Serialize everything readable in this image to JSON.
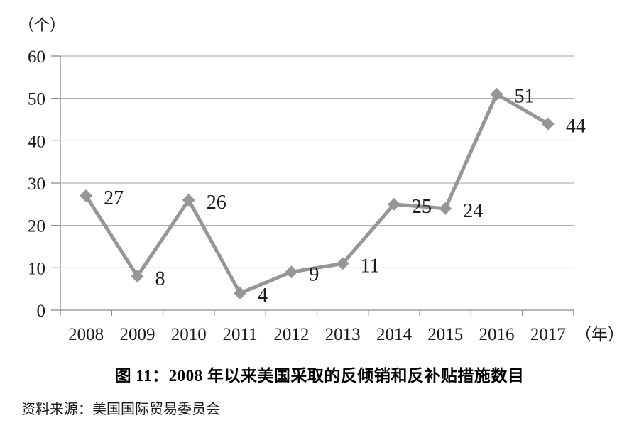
{
  "figure": {
    "title": "图 11：2008 年以来美国采取的反倾销和反补贴措施数目",
    "source": "资料来源：美国国际贸易委员会"
  },
  "chart_data": {
    "type": "line",
    "title": "图 11：2008 年以来美国采取的反倾销和反补贴措施数目",
    "categories": [
      "2008",
      "2009",
      "2010",
      "2011",
      "2012",
      "2013",
      "2014",
      "2015",
      "2016",
      "2017"
    ],
    "values": [
      27,
      8,
      26,
      4,
      9,
      11,
      25,
      24,
      51,
      44
    ],
    "data_labels": [
      "27",
      "8",
      "26",
      "4",
      "9",
      "11",
      "25",
      "24",
      "51",
      "44"
    ],
    "xlabel": "（年）",
    "ylabel": "（个）",
    "ylim": [
      0,
      60
    ],
    "y_ticks": [
      0,
      10,
      20,
      30,
      40,
      50,
      60
    ],
    "grid": "horizontal",
    "legend": "none",
    "marker": "diamond",
    "colors": {
      "line": "#969696",
      "marker": "#969696",
      "grid": "#a3a3a3",
      "axis": "#8c8c8c",
      "text": "#1a1a1a"
    }
  }
}
